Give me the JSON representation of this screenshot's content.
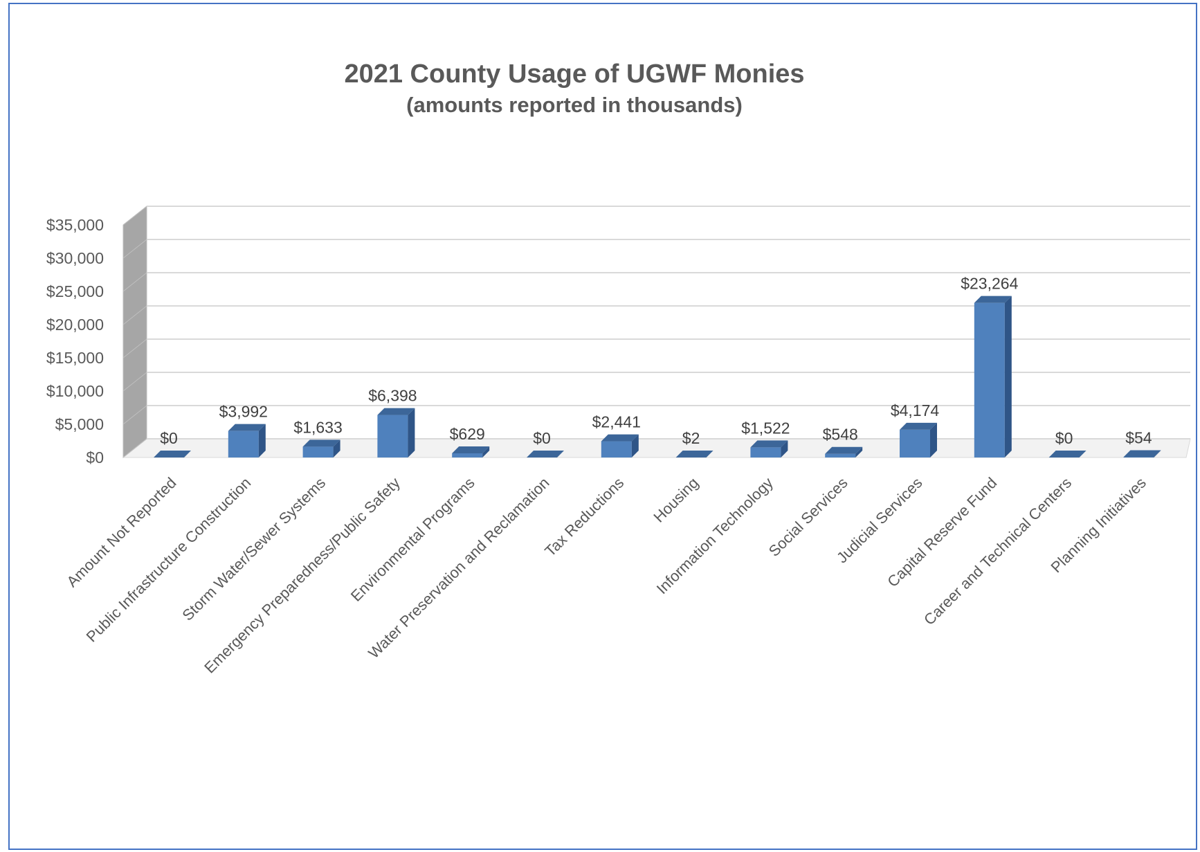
{
  "chart_data": {
    "type": "bar",
    "title": "2021 County Usage of UGWF Monies",
    "subtitle": "(amounts reported in thousands)",
    "categories": [
      "Amount Not Reported",
      "Public Infrastructure Construction",
      "Storm Water/Sewer Systems",
      "Emergency Preparedness/Public Safety",
      "Environmental Programs",
      "Water Preservation and Reclamation",
      "Tax Reductions",
      "Housing",
      "Information Technology",
      "Social Services",
      "Judicial Services",
      "Capital Reserve Fund",
      "Career and Technical Centers",
      "Planning Initiatives"
    ],
    "values": [
      0,
      3992,
      1633,
      6398,
      629,
      0,
      2441,
      2,
      1522,
      548,
      4174,
      23264,
      0,
      54
    ],
    "data_labels": [
      "$0",
      "$3,992",
      "$1,633",
      "$6,398",
      "$629",
      "$0",
      "$2,441",
      "$2",
      "$1,522",
      "$548",
      "$4,174",
      "$23,264",
      "$0",
      "$54"
    ],
    "ylim": [
      0,
      35000
    ],
    "yticks": [
      0,
      5000,
      10000,
      15000,
      20000,
      25000,
      30000,
      35000
    ],
    "ytick_labels": [
      "$0",
      "$5,000",
      "$10,000",
      "$15,000",
      "$20,000",
      "$25,000",
      "$30,000",
      "$35,000"
    ],
    "grid": true,
    "legend": "none",
    "colors": {
      "bar_front": "#4f81bd",
      "bar_side": "#2f5587",
      "bar_top": "#3c6699",
      "wall": "#a6a6a6",
      "grid": "#d9d9d9",
      "border": "#4472c4"
    }
  }
}
